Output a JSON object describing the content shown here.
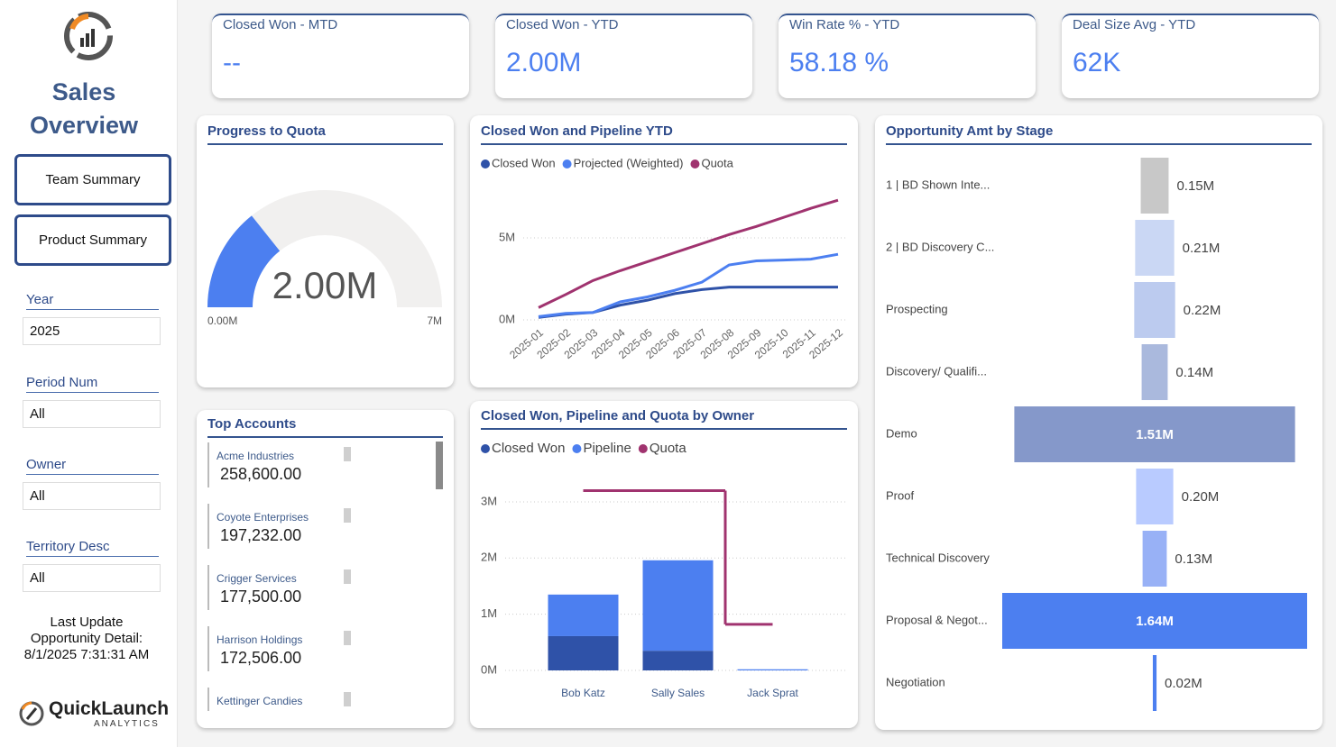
{
  "sidebar": {
    "title": "Sales Overview",
    "buttons": [
      "Team Summary",
      "Product Summary"
    ],
    "filters": [
      {
        "label": "Year",
        "value": "2025"
      },
      {
        "label": "Period Num",
        "value": "All"
      },
      {
        "label": "Owner",
        "value": "All"
      },
      {
        "label": "Territory Desc",
        "value": "All"
      }
    ],
    "last_update": [
      "Last Update",
      "Opportunity Detail:",
      "8/1/2025 7:31:31 AM"
    ],
    "brand": "QuickLaunch",
    "brand_sub": "ANALYTICS"
  },
  "kpis": [
    {
      "title": "Closed Won - MTD",
      "value": "--"
    },
    {
      "title": "Closed Won - YTD",
      "value": "2.00M"
    },
    {
      "title": "Win Rate % - YTD",
      "value": "58.18 %"
    },
    {
      "title": "Deal Size Avg - YTD",
      "value": "62K"
    }
  ],
  "top_accounts": {
    "title": "Top Accounts",
    "rows": [
      {
        "name": "Acme Industries",
        "value": "258,600.00"
      },
      {
        "name": "Coyote Enterprises",
        "value": "197,232.00"
      },
      {
        "name": "Crigger Services",
        "value": "177,500.00"
      },
      {
        "name": "Harrison Holdings",
        "value": "172,506.00"
      },
      {
        "name": "Kettinger Candies"
      }
    ]
  },
  "chart_data": [
    {
      "type": "gauge",
      "title": "Progress to Quota",
      "value": 2.0,
      "value_label": "2.00M",
      "ylim": [
        0,
        7
      ],
      "yticks": [
        {
          "value": 0,
          "label": "0.00M"
        },
        {
          "value": 7,
          "label": "7M"
        }
      ],
      "color": "#4c7ff0",
      "track_color": "#f1f0ef"
    },
    {
      "type": "line",
      "title": "Closed Won and Pipeline YTD",
      "categories": [
        "2025-01",
        "2025-02",
        "2025-03",
        "2025-04",
        "2025-05",
        "2025-06",
        "2025-07",
        "2025-08",
        "2025-09",
        "2025-10",
        "2025-11",
        "2025-12"
      ],
      "series": [
        {
          "name": "Closed Won",
          "color": "#2f52a8",
          "values": [
            0.15,
            0.35,
            0.45,
            0.9,
            1.2,
            1.6,
            1.85,
            2.0,
            2.0,
            2.0,
            2.0,
            2.0
          ]
        },
        {
          "name": "Projected (Weighted)",
          "color": "#4c7ff0",
          "values": [
            0.2,
            0.4,
            0.45,
            1.1,
            1.4,
            1.8,
            2.3,
            3.35,
            3.6,
            3.65,
            3.7,
            4.0
          ]
        },
        {
          "name": "Quota",
          "color": "#a0336f",
          "values": [
            0.75,
            1.55,
            2.4,
            3.0,
            3.55,
            4.1,
            4.65,
            5.2,
            5.7,
            6.25,
            6.8,
            7.3
          ]
        }
      ],
      "ylim": [
        0,
        7.5
      ],
      "yticks": [
        {
          "value": 0,
          "label": "0M"
        },
        {
          "value": 5,
          "label": "5M"
        }
      ],
      "grid": true,
      "legend": "top-left"
    },
    {
      "type": "bar",
      "stacked": true,
      "title": "Closed Won, Pipeline and Quota by Owner",
      "categories": [
        "Bob Katz",
        "Sally Sales",
        "Jack Sprat"
      ],
      "series": [
        {
          "name": "Closed Won",
          "color": "#2f52a8",
          "values": [
            0.61,
            0.35,
            0
          ]
        },
        {
          "name": "Pipeline",
          "color": "#4c7ff0",
          "values": [
            0.74,
            1.61,
            0.02
          ]
        },
        {
          "name": "Quota",
          "type": "line",
          "step": "mid",
          "color": "#a0336f",
          "values": [
            3.2,
            3.2,
            0.82
          ]
        }
      ],
      "ylim": [
        0,
        3.4
      ],
      "yticks": [
        {
          "value": 0,
          "label": "0M"
        },
        {
          "value": 1,
          "label": "1M"
        },
        {
          "value": 2,
          "label": "2M"
        },
        {
          "value": 3,
          "label": "3M"
        }
      ],
      "grid": true,
      "legend": "top-left"
    },
    {
      "type": "funnel",
      "title": "Opportunity Amt by Stage",
      "categories": [
        "1 | BD Shown Inte...",
        "2 | BD Discovery C...",
        "Prospecting",
        "Discovery/ Qualifi...",
        "Demo",
        "Proof",
        "Technical Discovery",
        "Proposal & Negot...",
        "Negotiation"
      ],
      "values": [
        0.15,
        0.21,
        0.22,
        0.14,
        1.51,
        0.2,
        0.13,
        1.64,
        0.02
      ],
      "value_labels": [
        "0.15M",
        "0.21M",
        "0.22M",
        "0.14M",
        "1.51M",
        "0.20M",
        "0.13M",
        "1.64M",
        "0.02M"
      ],
      "colors": [
        "#c8c8c8",
        "#cad7f4",
        "#bccbef",
        "#aab9dd",
        "#8598ca",
        "#b9cbff",
        "#98b1f6",
        "#4c7ff0",
        "#4c7ff0"
      ]
    }
  ]
}
